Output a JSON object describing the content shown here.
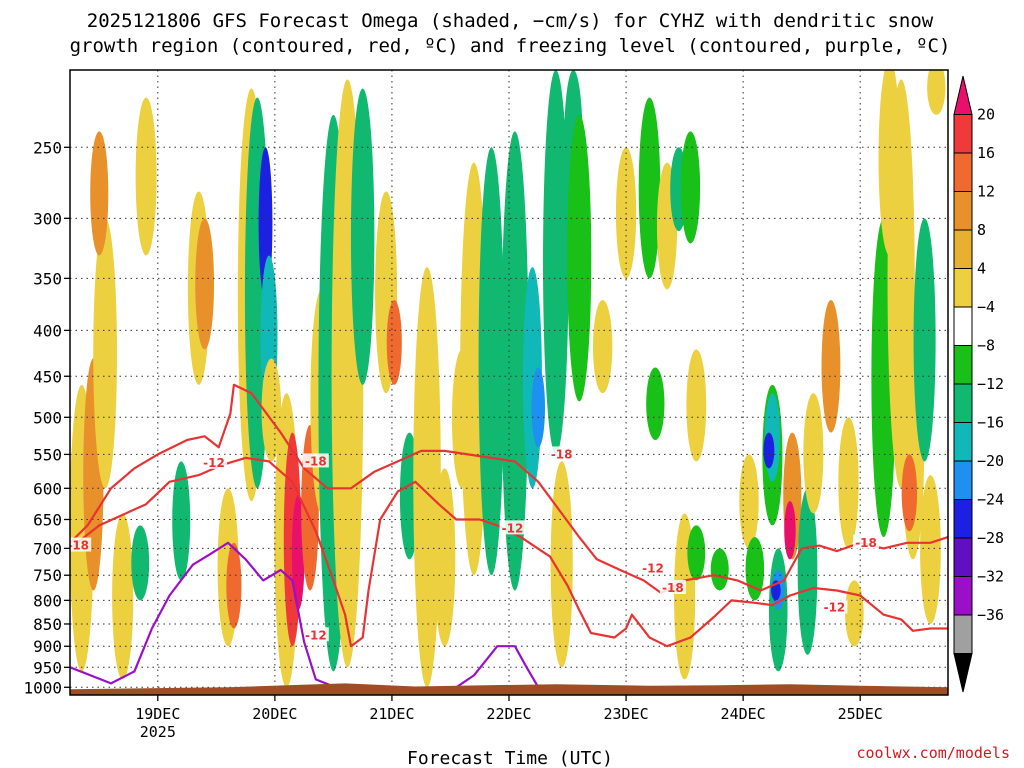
{
  "chart_data": {
    "type": "heatmap",
    "title_line1": "2025121806 GFS Forecast Omega (shaded, −cm/s) for CYHZ with dendritic snow",
    "title_line2": "growth region (contoured, red, ºC) and freezing level (contoured, purple, ºC)",
    "xlabel": "Forecast Time (UTC)",
    "credit": "coolwx.com/models",
    "y_axis": {
      "scale": "log-pressure",
      "inverted": true,
      "range_hpa": [
        1020,
        205
      ],
      "ticks": [
        "250",
        "300",
        "350",
        "400",
        "450",
        "500",
        "550",
        "600",
        "650",
        "700",
        "750",
        "800",
        "850",
        "900",
        "950",
        "1000"
      ]
    },
    "x_axis": {
      "range_days_from_dec18_00z": [
        0.25,
        7.75
      ],
      "ticks": [
        {
          "label": "19DEC",
          "sub": "2025"
        },
        {
          "label": "20DEC",
          "sub": ""
        },
        {
          "label": "21DEC",
          "sub": ""
        },
        {
          "label": "22DEC",
          "sub": ""
        },
        {
          "label": "23DEC",
          "sub": ""
        },
        {
          "label": "24DEC",
          "sub": ""
        },
        {
          "label": "25DEC",
          "sub": ""
        }
      ]
    },
    "grid": "dotted",
    "colorbar": {
      "placement": "right",
      "tick_labels": [
        "20",
        "16",
        "12",
        "8",
        "4",
        "−4",
        "−8",
        "−12",
        "−16",
        "−20",
        "−24",
        "−28",
        "−32",
        "−36"
      ],
      "colors": [
        "#e8106a",
        "#f03a3a",
        "#f06a30",
        "#e8902a",
        "#e8b030",
        "#ecd040",
        "#ffffff",
        "#18c018",
        "#10b870",
        "#10b8b8",
        "#1e90f0",
        "#1c20e0",
        "#6010c0",
        "#9a10c8",
        "#a0a0a0",
        "#000000"
      ]
    },
    "shading": [
      {
        "day": 0.35,
        "p_top": 460,
        "p_bot": 960,
        "value": 6
      },
      {
        "day": 0.45,
        "p_top": 430,
        "p_bot": 780,
        "value": 11
      },
      {
        "day": 0.55,
        "p_top": 300,
        "p_bot": 600,
        "value": 6
      },
      {
        "day": 0.5,
        "p_top": 240,
        "p_bot": 330,
        "value": 10
      },
      {
        "day": 0.7,
        "p_top": 640,
        "p_bot": 980,
        "value": 6
      },
      {
        "day": 0.85,
        "p_top": 660,
        "p_bot": 800,
        "value": -8
      },
      {
        "day": 0.9,
        "p_top": 220,
        "p_bot": 330,
        "value": 6
      },
      {
        "day": 1.2,
        "p_top": 560,
        "p_bot": 760,
        "value": -10
      },
      {
        "day": 1.35,
        "p_top": 280,
        "p_bot": 460,
        "value": 6
      },
      {
        "day": 1.4,
        "p_top": 300,
        "p_bot": 420,
        "value": 9
      },
      {
        "day": 1.6,
        "p_top": 600,
        "p_bot": 900,
        "value": 6
      },
      {
        "day": 1.65,
        "p_top": 690,
        "p_bot": 860,
        "value": 14
      },
      {
        "day": 1.8,
        "p_top": 215,
        "p_bot": 620,
        "value": 6
      },
      {
        "day": 1.85,
        "p_top": 220,
        "p_bot": 600,
        "value": -10
      },
      {
        "day": 1.92,
        "p_top": 250,
        "p_bot": 370,
        "value": -20
      },
      {
        "day": 1.95,
        "p_top": 330,
        "p_bot": 500,
        "value": -14
      },
      {
        "day": 1.97,
        "p_top": 430,
        "p_bot": 560,
        "value": 6
      },
      {
        "day": 2.1,
        "p_top": 470,
        "p_bot": 1000,
        "value": 6
      },
      {
        "day": 2.15,
        "p_top": 520,
        "p_bot": 900,
        "value": 16
      },
      {
        "day": 2.2,
        "p_top": 610,
        "p_bot": 820,
        "value": 20
      },
      {
        "day": 2.3,
        "p_top": 510,
        "p_bot": 780,
        "value": 13
      },
      {
        "day": 2.4,
        "p_top": 360,
        "p_bot": 640,
        "value": 6
      },
      {
        "day": 2.5,
        "p_top": 230,
        "p_bot": 960,
        "value": -8
      },
      {
        "day": 2.62,
        "p_top": 210,
        "p_bot": 950,
        "value": 6
      },
      {
        "day": 2.75,
        "p_top": 215,
        "p_bot": 460,
        "value": -8
      },
      {
        "day": 2.95,
        "p_top": 280,
        "p_bot": 470,
        "value": 6
      },
      {
        "day": 3.02,
        "p_top": 370,
        "p_bot": 460,
        "value": 14
      },
      {
        "day": 3.15,
        "p_top": 520,
        "p_bot": 720,
        "value": -8
      },
      {
        "day": 3.3,
        "p_top": 340,
        "p_bot": 1000,
        "value": 6
      },
      {
        "day": 3.45,
        "p_top": 570,
        "p_bot": 900,
        "value": 6
      },
      {
        "day": 3.6,
        "p_top": 420,
        "p_bot": 600,
        "value": 6
      },
      {
        "day": 3.7,
        "p_top": 260,
        "p_bot": 750,
        "value": 6
      },
      {
        "day": 3.85,
        "p_top": 250,
        "p_bot": 750,
        "value": -10
      },
      {
        "day": 4.05,
        "p_top": 240,
        "p_bot": 780,
        "value": -8
      },
      {
        "day": 4.2,
        "p_top": 340,
        "p_bot": 600,
        "value": -13
      },
      {
        "day": 4.25,
        "p_top": 440,
        "p_bot": 540,
        "value": -17
      },
      {
        "day": 4.4,
        "p_top": 205,
        "p_bot": 550,
        "value": -8
      },
      {
        "day": 4.55,
        "p_top": 205,
        "p_bot": 300,
        "value": -10
      },
      {
        "day": 4.45,
        "p_top": 560,
        "p_bot": 950,
        "value": 6
      },
      {
        "day": 4.6,
        "p_top": 230,
        "p_bot": 480,
        "value": -6
      },
      {
        "day": 4.8,
        "p_top": 370,
        "p_bot": 470,
        "value": 6
      },
      {
        "day": 5.0,
        "p_top": 250,
        "p_bot": 350,
        "value": 6
      },
      {
        "day": 5.2,
        "p_top": 220,
        "p_bot": 350,
        "value": -6
      },
      {
        "day": 5.25,
        "p_top": 440,
        "p_bot": 530,
        "value": -7
      },
      {
        "day": 5.35,
        "p_top": 260,
        "p_bot": 360,
        "value": 6
      },
      {
        "day": 5.45,
        "p_top": 250,
        "p_bot": 310,
        "value": -10
      },
      {
        "day": 5.55,
        "p_top": 240,
        "p_bot": 320,
        "value": -7
      },
      {
        "day": 5.6,
        "p_top": 420,
        "p_bot": 560,
        "value": 6
      },
      {
        "day": 5.5,
        "p_top": 640,
        "p_bot": 980,
        "value": 6
      },
      {
        "day": 5.6,
        "p_top": 660,
        "p_bot": 760,
        "value": -7
      },
      {
        "day": 5.8,
        "p_top": 700,
        "p_bot": 780,
        "value": -6
      },
      {
        "day": 6.05,
        "p_top": 550,
        "p_bot": 700,
        "value": 6
      },
      {
        "day": 6.1,
        "p_top": 680,
        "p_bot": 800,
        "value": -6
      },
      {
        "day": 6.25,
        "p_top": 460,
        "p_bot": 660,
        "value": -7
      },
      {
        "day": 6.25,
        "p_top": 470,
        "p_bot": 590,
        "value": -14
      },
      {
        "day": 6.22,
        "p_top": 520,
        "p_bot": 570,
        "value": -20
      },
      {
        "day": 6.3,
        "p_top": 700,
        "p_bot": 960,
        "value": -9
      },
      {
        "day": 6.3,
        "p_top": 740,
        "p_bot": 820,
        "value": -16
      },
      {
        "day": 6.28,
        "p_top": 760,
        "p_bot": 800,
        "value": -22
      },
      {
        "day": 6.42,
        "p_top": 520,
        "p_bot": 720,
        "value": 10
      },
      {
        "day": 6.4,
        "p_top": 620,
        "p_bot": 720,
        "value": 20
      },
      {
        "day": 6.55,
        "p_top": 600,
        "p_bot": 920,
        "value": -9
      },
      {
        "day": 6.6,
        "p_top": 470,
        "p_bot": 640,
        "value": 6
      },
      {
        "day": 6.75,
        "p_top": 370,
        "p_bot": 520,
        "value": 9
      },
      {
        "day": 6.9,
        "p_top": 500,
        "p_bot": 700,
        "value": 6
      },
      {
        "day": 6.95,
        "p_top": 760,
        "p_bot": 900,
        "value": 6
      },
      {
        "day": 7.2,
        "p_top": 300,
        "p_bot": 680,
        "value": -7
      },
      {
        "day": 7.25,
        "p_top": 200,
        "p_bot": 330,
        "value": 6
      },
      {
        "day": 7.35,
        "p_top": 210,
        "p_bot": 600,
        "value": 6
      },
      {
        "day": 7.45,
        "p_top": 410,
        "p_bot": 720,
        "value": 6
      },
      {
        "day": 7.42,
        "p_top": 550,
        "p_bot": 670,
        "value": 13
      },
      {
        "day": 7.55,
        "p_top": 300,
        "p_bot": 560,
        "value": -8
      },
      {
        "day": 7.65,
        "p_top": 200,
        "p_bot": 230,
        "value": 6
      },
      {
        "day": 7.6,
        "p_top": 580,
        "p_bot": 850,
        "value": 6
      }
    ],
    "contours": [
      {
        "name": "-12",
        "color": "#e83333",
        "labels": [
          [
            1.48,
            562,
            "-12"
          ],
          [
            4.03,
            665,
            "-12"
          ],
          [
            5.23,
            737,
            "-12"
          ],
          [
            6.78,
            815,
            "-12"
          ],
          [
            2.35,
            875,
            "-12"
          ]
        ],
        "points": [
          [
            0.25,
            700
          ],
          [
            0.5,
            660
          ],
          [
            0.9,
            625
          ],
          [
            1.1,
            590
          ],
          [
            1.35,
            580
          ],
          [
            1.55,
            565
          ],
          [
            1.75,
            555
          ],
          [
            1.95,
            560
          ],
          [
            2.15,
            590
          ],
          [
            2.35,
            670
          ],
          [
            2.5,
            760
          ],
          [
            2.6,
            830
          ],
          [
            2.65,
            900
          ],
          [
            2.75,
            880
          ],
          [
            2.8,
            780
          ],
          [
            2.9,
            650
          ],
          [
            3.05,
            605
          ],
          [
            3.2,
            590
          ],
          [
            3.4,
            625
          ],
          [
            3.55,
            650
          ],
          [
            3.75,
            650
          ],
          [
            3.9,
            660
          ],
          [
            4.1,
            680
          ],
          [
            4.35,
            715
          ],
          [
            4.5,
            770
          ],
          [
            4.6,
            820
          ],
          [
            4.7,
            870
          ],
          [
            4.9,
            880
          ],
          [
            5.0,
            860
          ],
          [
            5.05,
            830
          ],
          [
            5.2,
            880
          ],
          [
            5.35,
            900
          ],
          [
            5.55,
            880
          ],
          [
            5.75,
            835
          ],
          [
            5.9,
            800
          ],
          [
            6.1,
            805
          ],
          [
            6.25,
            810
          ],
          [
            6.4,
            790
          ],
          [
            6.6,
            775
          ],
          [
            6.8,
            780
          ],
          [
            7.0,
            790
          ],
          [
            7.2,
            830
          ],
          [
            7.35,
            840
          ],
          [
            7.45,
            865
          ],
          [
            7.6,
            860
          ],
          [
            7.75,
            860
          ]
        ]
      },
      {
        "name": "-18",
        "color": "#e83333",
        "labels": [
          [
            0.32,
            695,
            "-18"
          ],
          [
            2.35,
            560,
            "-18"
          ],
          [
            4.45,
            550,
            "-18"
          ],
          [
            5.4,
            775,
            "-18"
          ],
          [
            7.05,
            690,
            "-18"
          ]
        ],
        "points": [
          [
            0.25,
            690
          ],
          [
            0.4,
            660
          ],
          [
            0.6,
            600
          ],
          [
            0.8,
            570
          ],
          [
            1.0,
            550
          ],
          [
            1.25,
            530
          ],
          [
            1.4,
            525
          ],
          [
            1.52,
            540
          ],
          [
            1.62,
            495
          ],
          [
            1.65,
            460
          ],
          [
            1.8,
            470
          ],
          [
            2.05,
            520
          ],
          [
            2.25,
            570
          ],
          [
            2.45,
            600
          ],
          [
            2.65,
            600
          ],
          [
            2.85,
            575
          ],
          [
            3.05,
            560
          ],
          [
            3.25,
            545
          ],
          [
            3.45,
            545
          ],
          [
            3.65,
            550
          ],
          [
            3.85,
            555
          ],
          [
            4.05,
            560
          ],
          [
            4.25,
            590
          ],
          [
            4.45,
            640
          ],
          [
            4.6,
            680
          ],
          [
            4.75,
            720
          ],
          [
            4.95,
            740
          ],
          [
            5.15,
            760
          ],
          [
            5.3,
            785
          ],
          [
            5.5,
            760
          ],
          [
            5.75,
            750
          ],
          [
            5.95,
            760
          ],
          [
            6.15,
            780
          ],
          [
            6.35,
            760
          ],
          [
            6.5,
            700
          ],
          [
            6.65,
            695
          ],
          [
            6.8,
            705
          ],
          [
            7.0,
            690
          ],
          [
            7.2,
            700
          ],
          [
            7.4,
            690
          ],
          [
            7.6,
            690
          ],
          [
            7.75,
            680
          ]
        ]
      },
      {
        "name": "0",
        "color": "#9a10c8",
        "labels": [],
        "points": [
          [
            0.25,
            950
          ],
          [
            0.6,
            990
          ],
          [
            0.8,
            960
          ],
          [
            0.95,
            860
          ],
          [
            1.1,
            790
          ],
          [
            1.3,
            730
          ],
          [
            1.45,
            710
          ],
          [
            1.6,
            690
          ],
          [
            1.75,
            720
          ],
          [
            1.9,
            760
          ],
          [
            2.05,
            740
          ],
          [
            2.15,
            760
          ],
          [
            2.25,
            890
          ],
          [
            2.35,
            980
          ],
          [
            2.6,
            1010
          ],
          [
            3.3,
            1020
          ],
          [
            3.5,
            1010
          ],
          [
            3.7,
            970
          ],
          [
            3.9,
            900
          ],
          [
            4.05,
            900
          ],
          [
            4.15,
            950
          ],
          [
            4.25,
            1000
          ],
          [
            4.4,
            1020
          ]
        ]
      }
    ]
  }
}
